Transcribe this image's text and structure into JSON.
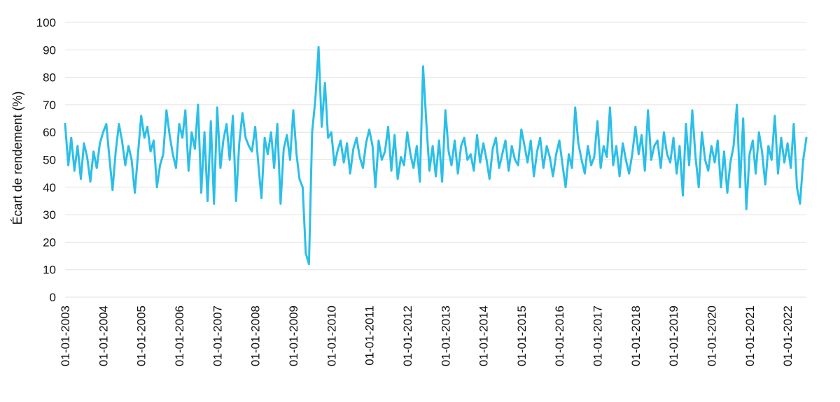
{
  "chart_data": {
    "type": "line",
    "title": "",
    "xlabel": "",
    "ylabel": "Écart de rendement (%)",
    "ylim": [
      0,
      100
    ],
    "yticks": [
      "0",
      "10",
      "20",
      "30",
      "40",
      "50",
      "60",
      "70",
      "80",
      "90",
      "100"
    ],
    "xticks": [
      "01-01-2003",
      "01-01-2004",
      "01-01-2005",
      "01-01-2006",
      "01-01-2007",
      "01-01-2008",
      "01-01-2009",
      "01-01-2010",
      "01-01-2011",
      "01-01-2012",
      "01-01-2013",
      "01-01-2014",
      "01-01-2015",
      "01-01-2016",
      "01-01-2017",
      "01-01-2018",
      "01-01-2019",
      "01-01-2020",
      "01-01-2021",
      "01-01-2022"
    ],
    "grid": "horizontal",
    "line_color": "#2bbfe8",
    "series": [
      {
        "x": [
          "2003-01-01",
          "2003-02-01",
          "2003-03-01",
          "2003-04-01",
          "2003-05-01",
          "2003-06-01",
          "2003-07-01",
          "2003-08-01",
          "2003-09-01",
          "2003-10-01",
          "2003-11-01",
          "2003-12-01",
          "2004-01-01",
          "2004-02-01",
          "2004-03-01",
          "2004-04-01",
          "2004-05-01",
          "2004-06-01",
          "2004-07-01",
          "2004-08-01",
          "2004-09-01",
          "2004-10-01",
          "2004-11-01",
          "2004-12-01",
          "2005-01-01",
          "2005-02-01",
          "2005-03-01",
          "2005-04-01",
          "2005-05-01",
          "2005-06-01",
          "2005-07-01",
          "2005-08-01",
          "2005-09-01",
          "2005-10-01",
          "2005-11-01",
          "2005-12-01",
          "2006-01-01",
          "2006-02-01",
          "2006-03-01",
          "2006-04-01",
          "2006-05-01",
          "2006-06-01",
          "2006-07-01",
          "2006-08-01",
          "2006-09-01",
          "2006-10-01",
          "2006-11-01",
          "2006-12-01",
          "2007-01-01",
          "2007-02-01",
          "2007-03-01",
          "2007-04-01",
          "2007-05-01",
          "2007-06-01",
          "2007-07-01",
          "2007-08-01",
          "2007-09-01",
          "2007-10-01",
          "2007-11-01",
          "2007-12-01",
          "2008-01-01",
          "2008-02-01",
          "2008-03-01",
          "2008-04-01",
          "2008-05-01",
          "2008-06-01",
          "2008-07-01",
          "2008-08-01",
          "2008-09-01",
          "2008-10-01",
          "2008-11-01",
          "2008-12-01",
          "2009-01-01",
          "2009-02-01",
          "2009-03-01",
          "2009-04-01",
          "2009-05-01",
          "2009-06-01",
          "2009-07-01",
          "2009-08-01",
          "2009-09-01",
          "2009-10-01",
          "2009-11-01",
          "2009-12-01",
          "2010-01-01",
          "2010-02-01",
          "2010-03-01",
          "2010-04-01",
          "2010-05-01",
          "2010-06-01",
          "2010-07-01",
          "2010-08-01",
          "2010-09-01",
          "2010-10-01",
          "2010-11-01",
          "2010-12-01",
          "2011-01-01",
          "2011-02-01",
          "2011-03-01",
          "2011-04-01",
          "2011-05-01",
          "2011-06-01",
          "2011-07-01",
          "2011-08-01",
          "2011-09-01",
          "2011-10-01",
          "2011-11-01",
          "2011-12-01",
          "2012-01-01",
          "2012-02-01",
          "2012-03-01",
          "2012-04-01",
          "2012-05-01",
          "2012-06-01",
          "2012-07-01",
          "2012-08-01",
          "2012-09-01",
          "2012-10-01",
          "2012-11-01",
          "2012-12-01",
          "2013-01-01",
          "2013-02-01",
          "2013-03-01",
          "2013-04-01",
          "2013-05-01",
          "2013-06-01",
          "2013-07-01",
          "2013-08-01",
          "2013-09-01",
          "2013-10-01",
          "2013-11-01",
          "2013-12-01",
          "2014-01-01",
          "2014-02-01",
          "2014-03-01",
          "2014-04-01",
          "2014-05-01",
          "2014-06-01",
          "2014-07-01",
          "2014-08-01",
          "2014-09-01",
          "2014-10-01",
          "2014-11-01",
          "2014-12-01",
          "2015-01-01",
          "2015-02-01",
          "2015-03-01",
          "2015-04-01",
          "2015-05-01",
          "2015-06-01",
          "2015-07-01",
          "2015-08-01",
          "2015-09-01",
          "2015-10-01",
          "2015-11-01",
          "2015-12-01",
          "2016-01-01",
          "2016-02-01",
          "2016-03-01",
          "2016-04-01",
          "2016-05-01",
          "2016-06-01",
          "2016-07-01",
          "2016-08-01",
          "2016-09-01",
          "2016-10-01",
          "2016-11-01",
          "2016-12-01",
          "2017-01-01",
          "2017-02-01",
          "2017-03-01",
          "2017-04-01",
          "2017-05-01",
          "2017-06-01",
          "2017-07-01",
          "2017-08-01",
          "2017-09-01",
          "2017-10-01",
          "2017-11-01",
          "2017-12-01",
          "2018-01-01",
          "2018-02-01",
          "2018-03-01",
          "2018-04-01",
          "2018-05-01",
          "2018-06-01",
          "2018-07-01",
          "2018-08-01",
          "2018-09-01",
          "2018-10-01",
          "2018-11-01",
          "2018-12-01",
          "2019-01-01",
          "2019-02-01",
          "2019-03-01",
          "2019-04-01",
          "2019-05-01",
          "2019-06-01",
          "2019-07-01",
          "2019-08-01",
          "2019-09-01",
          "2019-10-01",
          "2019-11-01",
          "2019-12-01",
          "2020-01-01",
          "2020-02-01",
          "2020-03-01",
          "2020-04-01",
          "2020-05-01",
          "2020-06-01",
          "2020-07-01",
          "2020-08-01",
          "2020-09-01",
          "2020-10-01",
          "2020-11-01",
          "2020-12-01",
          "2021-01-01",
          "2021-02-01",
          "2021-03-01",
          "2021-04-01",
          "2021-05-01",
          "2021-06-01",
          "2021-07-01",
          "2021-08-01",
          "2021-09-01",
          "2021-10-01",
          "2021-11-01",
          "2021-12-01",
          "2022-01-01",
          "2022-02-01",
          "2022-03-01",
          "2022-04-01",
          "2022-05-01",
          "2022-06-01",
          "2022-07-01"
        ],
        "values": [
          63,
          48,
          58,
          46,
          55,
          43,
          56,
          51,
          42,
          53,
          47,
          56,
          60,
          63,
          51,
          39,
          53,
          63,
          57,
          48,
          55,
          50,
          38,
          52,
          66,
          58,
          62,
          53,
          57,
          40,
          48,
          52,
          68,
          59,
          52,
          47,
          63,
          58,
          68,
          46,
          60,
          54,
          70,
          38,
          60,
          35,
          64,
          34,
          69,
          47,
          57,
          63,
          50,
          66,
          35,
          56,
          67,
          58,
          55,
          53,
          62,
          48,
          36,
          58,
          52,
          60,
          47,
          63,
          34,
          54,
          59,
          50,
          68,
          52,
          43,
          40,
          16,
          12,
          60,
          72,
          91,
          62,
          78,
          58,
          60,
          48,
          53,
          57,
          49,
          56,
          45,
          54,
          58,
          51,
          47,
          56,
          61,
          55,
          40,
          57,
          50,
          53,
          62,
          46,
          59,
          43,
          51,
          48,
          60,
          52,
          47,
          55,
          42,
          84,
          64,
          46,
          55,
          44,
          57,
          42,
          68,
          53,
          48,
          57,
          45,
          55,
          58,
          50,
          52,
          46,
          59,
          49,
          56,
          50,
          43,
          54,
          58,
          47,
          52,
          57,
          46,
          55,
          50,
          48,
          61,
          55,
          49,
          57,
          44,
          53,
          58,
          47,
          55,
          51,
          44,
          52,
          57,
          48,
          40,
          52,
          47,
          69,
          56,
          50,
          45,
          55,
          48,
          51,
          64,
          47,
          55,
          51,
          69,
          48,
          55,
          44,
          56,
          50,
          45,
          52,
          62,
          52,
          59,
          46,
          68,
          50,
          55,
          57,
          47,
          60,
          52,
          49,
          58,
          45,
          55,
          37,
          63,
          48,
          68,
          51,
          40,
          60,
          50,
          46,
          55,
          49,
          57,
          40,
          53,
          38,
          49,
          55,
          70,
          40,
          65,
          32,
          52,
          57,
          45,
          60,
          53,
          41,
          55,
          50,
          66,
          45,
          58,
          49,
          56,
          47,
          63,
          40,
          34,
          50,
          58
        ]
      }
    ]
  }
}
